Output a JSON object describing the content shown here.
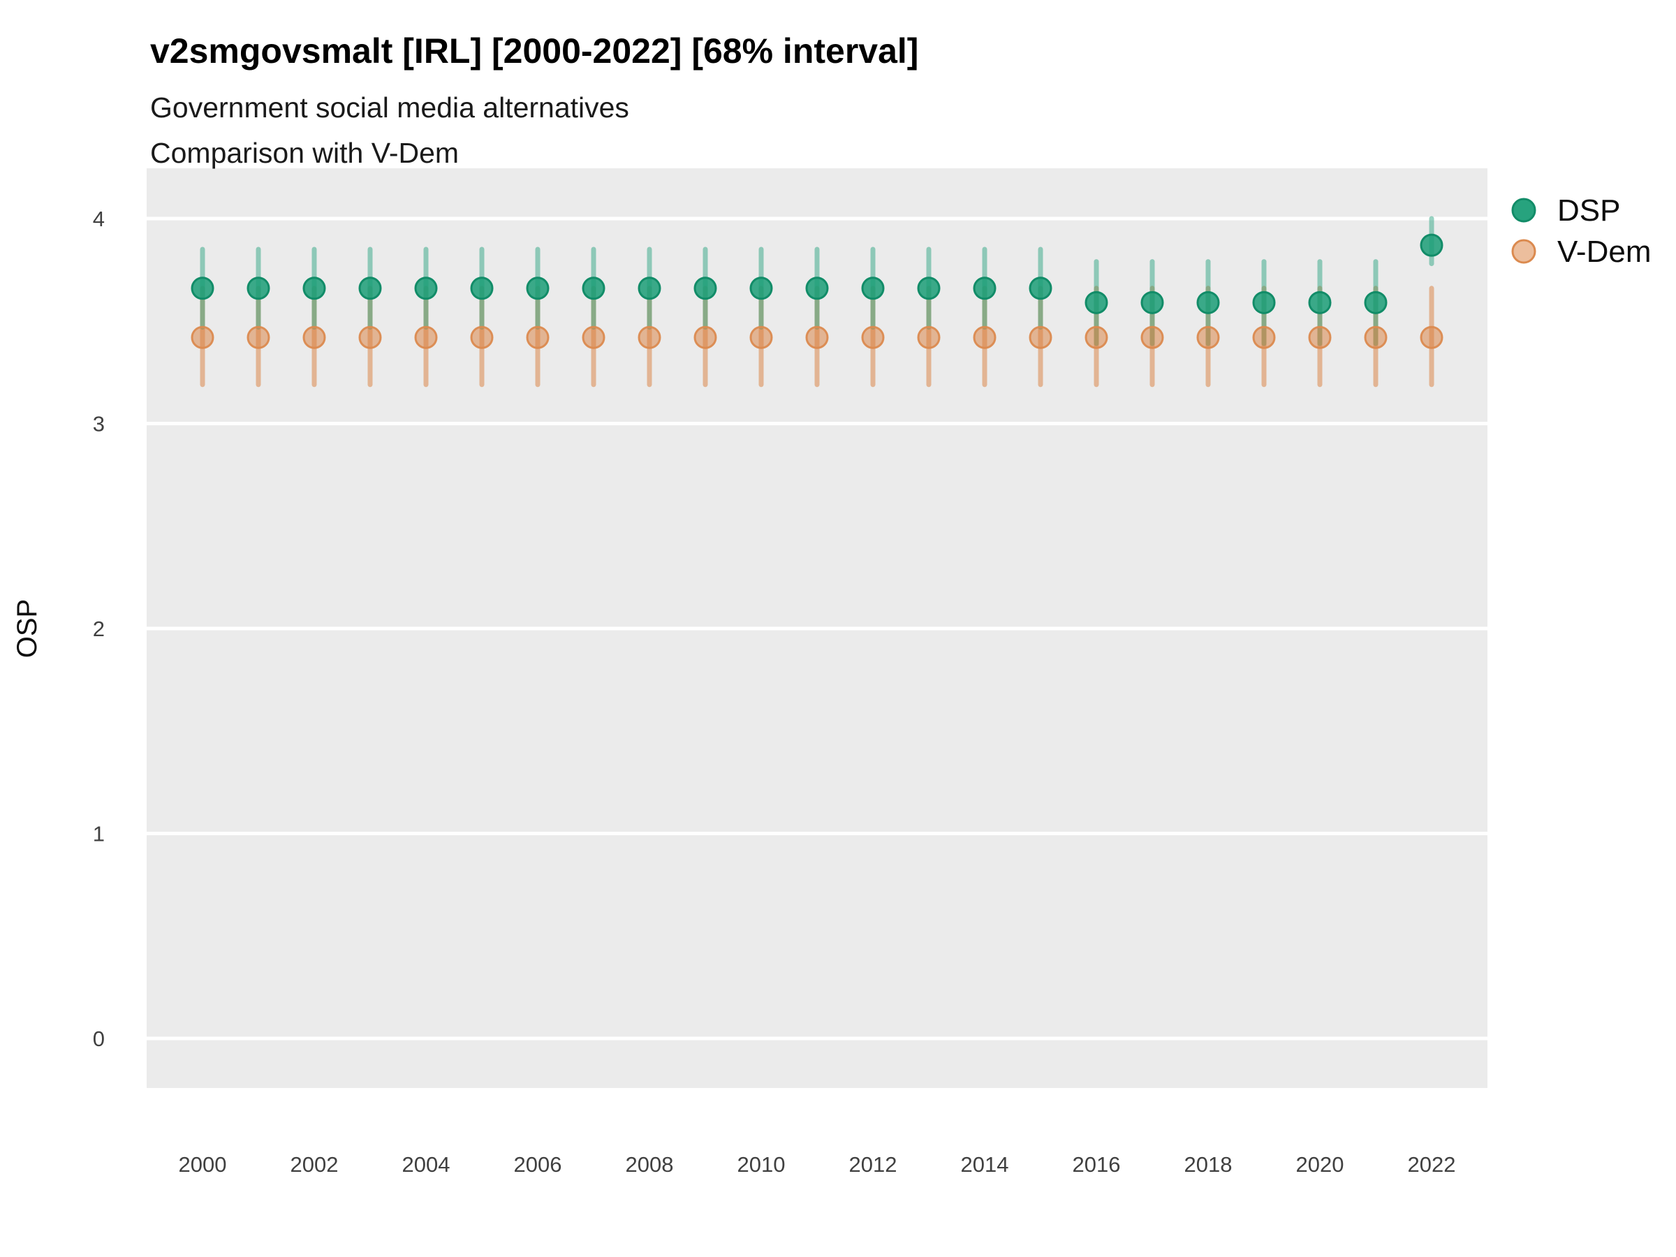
{
  "chart_data": {
    "type": "pointrange",
    "title": "v2smgovsmalt [IRL] [2000-2022] [68% interval]",
    "subtitles": [
      "Government social media alternatives",
      "Comparison with V-Dem"
    ],
    "ylabel": "OSP",
    "xlabel": "",
    "interval_label": "68% interval",
    "x": [
      2000,
      2001,
      2002,
      2003,
      2004,
      2005,
      2006,
      2007,
      2008,
      2009,
      2010,
      2011,
      2012,
      2013,
      2014,
      2015,
      2016,
      2017,
      2018,
      2019,
      2020,
      2021,
      2022
    ],
    "x_tick_labels": [
      "2000",
      "2002",
      "2004",
      "2006",
      "2008",
      "2010",
      "2012",
      "2014",
      "2016",
      "2018",
      "2020",
      "2022"
    ],
    "yticks": [
      "0",
      "1",
      "2",
      "3",
      "4"
    ],
    "ylim": [
      -0.25,
      4.25
    ],
    "grid": "horizontal-major-only",
    "legend_position": "right-top",
    "panel_color": "#EBEBEB",
    "series": [
      {
        "name": "DSP",
        "color": "#1B9E77",
        "stroke_color": "#128C68",
        "est": [
          3.66,
          3.66,
          3.66,
          3.66,
          3.66,
          3.66,
          3.66,
          3.66,
          3.66,
          3.66,
          3.66,
          3.66,
          3.66,
          3.66,
          3.66,
          3.66,
          3.59,
          3.59,
          3.59,
          3.59,
          3.59,
          3.59,
          3.87
        ],
        "lo": [
          3.47,
          3.47,
          3.47,
          3.47,
          3.47,
          3.47,
          3.47,
          3.47,
          3.47,
          3.47,
          3.47,
          3.47,
          3.47,
          3.47,
          3.47,
          3.47,
          3.39,
          3.39,
          3.39,
          3.39,
          3.39,
          3.39,
          3.78
        ],
        "hi": [
          3.85,
          3.85,
          3.85,
          3.85,
          3.85,
          3.85,
          3.85,
          3.85,
          3.85,
          3.85,
          3.85,
          3.85,
          3.85,
          3.85,
          3.85,
          3.85,
          3.79,
          3.79,
          3.79,
          3.79,
          3.79,
          3.79,
          4.0
        ]
      },
      {
        "name": "V-Dem",
        "color": "#D97E3B",
        "stroke_color": "#DB8A4F",
        "est": [
          3.42,
          3.42,
          3.42,
          3.42,
          3.42,
          3.42,
          3.42,
          3.42,
          3.42,
          3.42,
          3.42,
          3.42,
          3.42,
          3.42,
          3.42,
          3.42,
          3.42,
          3.42,
          3.42,
          3.42,
          3.42,
          3.42,
          3.42
        ],
        "lo": [
          3.19,
          3.19,
          3.19,
          3.19,
          3.19,
          3.19,
          3.19,
          3.19,
          3.19,
          3.19,
          3.19,
          3.19,
          3.19,
          3.19,
          3.19,
          3.19,
          3.19,
          3.19,
          3.19,
          3.19,
          3.19,
          3.19,
          3.19
        ],
        "hi": [
          3.66,
          3.66,
          3.66,
          3.66,
          3.66,
          3.66,
          3.66,
          3.66,
          3.66,
          3.66,
          3.66,
          3.66,
          3.66,
          3.66,
          3.66,
          3.66,
          3.66,
          3.66,
          3.66,
          3.66,
          3.66,
          3.66,
          3.66
        ]
      }
    ]
  }
}
